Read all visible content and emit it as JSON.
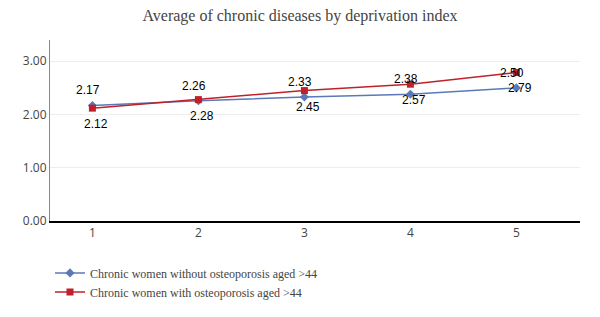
{
  "chart_data": {
    "type": "line",
    "title": "Average of chronic diseases by deprivation index",
    "x": [
      1,
      2,
      3,
      4,
      5
    ],
    "series": [
      {
        "name": "Chronic women without osteoporosis aged >44",
        "color": "#5B78B8",
        "marker": "diamond",
        "values": [
          2.17,
          2.26,
          2.33,
          2.38,
          2.5
        ],
        "value_labels": [
          "2.17",
          "2.26",
          "2.33",
          "2.38",
          "2.50"
        ]
      },
      {
        "name": "Chronic women with osteoporosis aged >44",
        "color": "#C0202A",
        "marker": "square",
        "values": [
          2.12,
          2.28,
          2.45,
          2.57,
          2.79
        ],
        "value_labels": [
          "2.12",
          "2.28",
          "2.45",
          "2.57",
          "2.79"
        ]
      }
    ],
    "xlim": [
      0.6,
      5.6
    ],
    "xticks": [
      1,
      2,
      3,
      4,
      5
    ],
    "ylim": [
      0.0,
      3.4
    ],
    "yticks": [
      {
        "value": 0,
        "label": "0.00"
      },
      {
        "value": 1,
        "label": "1.00"
      },
      {
        "value": 2,
        "label": "2.00"
      },
      {
        "value": 3,
        "label": "3.00"
      }
    ],
    "grid": true,
    "data_labels": true,
    "legend": "bottom left"
  }
}
